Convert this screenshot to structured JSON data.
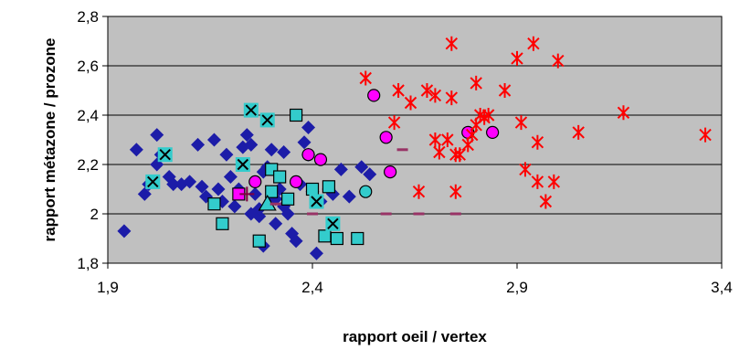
{
  "chart_data": {
    "type": "scatter",
    "xlabel": "rapport oeil / vertex",
    "ylabel": "rapport métazone / prozone",
    "xlim": [
      1.9,
      3.4
    ],
    "ylim": [
      1.8,
      2.8
    ],
    "x_ticks": [
      "1,9",
      "2,4",
      "2,9",
      "3,4"
    ],
    "y_ticks": [
      "1,8",
      "2",
      "2,2",
      "2,4",
      "2,6",
      "2,8"
    ],
    "plot_background": "#c0c0c0",
    "grid": "horizontal",
    "legend": "none",
    "series": [
      {
        "marker": "diamond",
        "color": "#1c1ca8",
        "points": [
          [
            1.94,
            1.93
          ],
          [
            1.97,
            2.26
          ],
          [
            1.99,
            2.08
          ],
          [
            2.0,
            2.12
          ],
          [
            2.02,
            2.32
          ],
          [
            2.02,
            2.2
          ],
          [
            2.03,
            2.24
          ],
          [
            2.05,
            2.15
          ],
          [
            2.06,
            2.12
          ],
          [
            2.08,
            2.12
          ],
          [
            2.1,
            2.13
          ],
          [
            2.12,
            2.28
          ],
          [
            2.13,
            2.11
          ],
          [
            2.14,
            2.07
          ],
          [
            2.16,
            2.3
          ],
          [
            2.17,
            2.1
          ],
          [
            2.18,
            2.05
          ],
          [
            2.19,
            2.24
          ],
          [
            2.2,
            2.15
          ],
          [
            2.21,
            2.03
          ],
          [
            2.22,
            2.1
          ],
          [
            2.23,
            2.27
          ],
          [
            2.24,
            2.32
          ],
          [
            2.25,
            2.28
          ],
          [
            2.25,
            2.0
          ],
          [
            2.26,
            2.08
          ],
          [
            2.27,
            1.99
          ],
          [
            2.27,
            2.02
          ],
          [
            2.28,
            2.17
          ],
          [
            2.28,
            1.87
          ],
          [
            2.29,
            2.19
          ],
          [
            2.3,
            2.26
          ],
          [
            2.31,
            1.96
          ],
          [
            2.31,
            2.06
          ],
          [
            2.32,
            2.1
          ],
          [
            2.33,
            2.03
          ],
          [
            2.33,
            2.25
          ],
          [
            2.34,
            2.0
          ],
          [
            2.35,
            1.92
          ],
          [
            2.36,
            1.89
          ],
          [
            2.37,
            2.12
          ],
          [
            2.38,
            2.29
          ],
          [
            2.39,
            2.35
          ],
          [
            2.39,
            2.24
          ],
          [
            2.4,
            2.09
          ],
          [
            2.41,
            1.84
          ],
          [
            2.42,
            2.05
          ],
          [
            2.44,
            2.1
          ],
          [
            2.45,
            2.08
          ],
          [
            2.47,
            2.18
          ],
          [
            2.49,
            2.07
          ],
          [
            2.52,
            2.19
          ],
          [
            2.54,
            2.16
          ]
        ]
      },
      {
        "marker": "square",
        "color": "#33cccc",
        "points": [
          [
            2.16,
            2.04
          ],
          [
            2.18,
            1.96
          ],
          [
            2.27,
            1.89
          ],
          [
            2.3,
            2.18
          ],
          [
            2.3,
            2.09
          ],
          [
            2.32,
            2.15
          ],
          [
            2.34,
            2.06
          ],
          [
            2.36,
            2.4
          ],
          [
            2.4,
            2.1
          ],
          [
            2.43,
            1.91
          ],
          [
            2.44,
            2.11
          ],
          [
            2.46,
            1.9
          ],
          [
            2.51,
            1.9
          ]
        ]
      },
      {
        "marker": "x",
        "color": "#33cccc",
        "points": [
          [
            2.01,
            2.13
          ],
          [
            2.04,
            2.24
          ],
          [
            2.23,
            2.2
          ],
          [
            2.25,
            2.42
          ],
          [
            2.29,
            2.38
          ],
          [
            2.41,
            2.05
          ],
          [
            2.45,
            1.96
          ]
        ]
      },
      {
        "marker": "triangle",
        "color": "#33cccc",
        "points": [
          [
            2.29,
            2.04
          ]
        ]
      },
      {
        "marker": "circle",
        "color": "#33cccc",
        "points": [
          [
            2.53,
            2.09
          ]
        ]
      },
      {
        "marker": "circle",
        "color": "#ff00ff",
        "points": [
          [
            2.26,
            2.13
          ],
          [
            2.36,
            2.13
          ],
          [
            2.39,
            2.24
          ],
          [
            2.42,
            2.22
          ],
          [
            2.55,
            2.48
          ],
          [
            2.58,
            2.31
          ],
          [
            2.59,
            2.17
          ],
          [
            2.78,
            2.33
          ],
          [
            2.84,
            2.33
          ]
        ]
      },
      {
        "marker": "square",
        "color": "#ff00ff",
        "points": [
          [
            2.22,
            2.08
          ]
        ]
      },
      {
        "marker": "plus",
        "color": "#ff00ff",
        "points": [
          [
            2.24,
            2.08
          ]
        ]
      },
      {
        "marker": "asterisk",
        "color": "#ff0000",
        "points": [
          [
            2.53,
            2.55
          ],
          [
            2.6,
            2.37
          ],
          [
            2.61,
            2.5
          ],
          [
            2.64,
            2.45
          ],
          [
            2.66,
            2.09
          ],
          [
            2.68,
            2.5
          ],
          [
            2.7,
            2.3
          ],
          [
            2.7,
            2.48
          ],
          [
            2.71,
            2.25
          ],
          [
            2.73,
            2.3
          ],
          [
            2.74,
            2.69
          ],
          [
            2.74,
            2.47
          ],
          [
            2.75,
            2.24
          ],
          [
            2.75,
            2.09
          ],
          [
            2.76,
            2.24
          ],
          [
            2.78,
            2.28
          ],
          [
            2.79,
            2.32
          ],
          [
            2.8,
            2.36
          ],
          [
            2.8,
            2.53
          ],
          [
            2.81,
            2.4
          ],
          [
            2.82,
            2.39
          ],
          [
            2.83,
            2.4
          ],
          [
            2.87,
            2.5
          ],
          [
            2.9,
            2.63
          ],
          [
            2.91,
            2.37
          ],
          [
            2.92,
            2.18
          ],
          [
            2.94,
            2.69
          ],
          [
            2.95,
            2.29
          ],
          [
            2.95,
            2.13
          ],
          [
            2.97,
            2.05
          ],
          [
            2.99,
            2.13
          ],
          [
            3.0,
            2.62
          ],
          [
            3.05,
            2.33
          ],
          [
            3.16,
            2.41
          ],
          [
            3.36,
            2.32
          ]
        ]
      },
      {
        "marker": "dash",
        "color": "#993366",
        "points": [
          [
            2.31,
            2.04
          ],
          [
            2.4,
            2.0
          ],
          [
            2.58,
            2.0
          ],
          [
            2.62,
            2.26
          ],
          [
            2.66,
            2.0
          ],
          [
            2.75,
            2.0
          ]
        ]
      }
    ]
  }
}
